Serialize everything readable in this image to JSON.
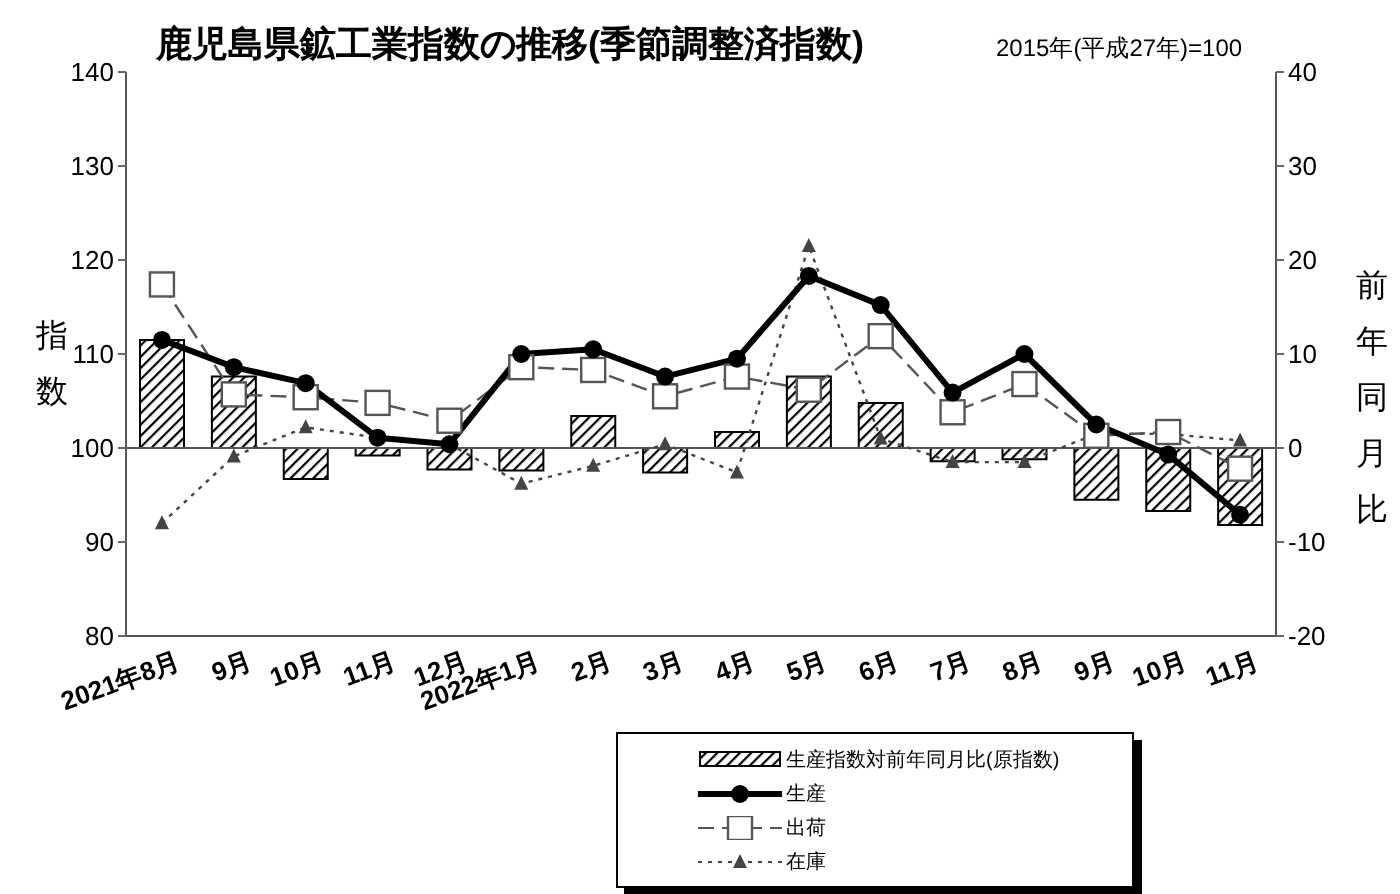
{
  "chart_data": {
    "type": "line",
    "title": "鹿児島県鉱工業指数の推移(季節調整済指数)",
    "subtitle": "2015年(平成27年)=100",
    "ylabel": "指数",
    "y2label": "前年同月比",
    "categories": [
      "2021年8月",
      "9月",
      "10月",
      "11月",
      "12月",
      "2022年1月",
      "2月",
      "3月",
      "4月",
      "5月",
      "6月",
      "7月",
      "8月",
      "9月",
      "10月",
      "11月"
    ],
    "ylim": [
      80,
      140
    ],
    "yticks": [
      80,
      90,
      100,
      110,
      120,
      130,
      140
    ],
    "y2lim": [
      -20,
      40
    ],
    "y2ticks": [
      -20,
      -10,
      0,
      10,
      20,
      30,
      40
    ],
    "legend": "bottom",
    "ref_lines": [
      {
        "axis": "y2",
        "value": 0,
        "color": "#555555"
      }
    ],
    "series": [
      {
        "name": "生産指数対前年同月比(原指数)",
        "type": "bar",
        "axis": "y2",
        "color": "#000000",
        "values": [
          11.5,
          7.6,
          -3.3,
          -0.8,
          -2.3,
          -2.4,
          3.4,
          -2.6,
          1.7,
          7.6,
          4.8,
          -1.4,
          -1.2,
          -5.5,
          -6.7,
          -8.2
        ]
      },
      {
        "name": "生産",
        "color": "#000000",
        "marker": "circle",
        "line_style": "solid",
        "values": [
          111.5,
          108.6,
          106.9,
          101.1,
          100.4,
          110.0,
          110.5,
          107.6,
          109.5,
          118.3,
          115.2,
          105.9,
          110.0,
          102.5,
          99.3,
          92.9
        ]
      },
      {
        "name": "出荷",
        "color": "#555555",
        "marker": "square",
        "line_style": "dashed",
        "values": [
          117.4,
          105.7,
          105.4,
          104.8,
          102.9,
          108.6,
          108.3,
          105.5,
          107.6,
          106.2,
          111.9,
          103.8,
          106.8,
          101.3,
          101.7,
          97.8
        ]
      },
      {
        "name": "在庫",
        "color": "#444444",
        "marker": "triangle",
        "line_style": "dotted",
        "values": [
          92.0,
          99.1,
          102.2,
          101.1,
          100.4,
          96.2,
          98.1,
          100.4,
          97.4,
          121.5,
          101.0,
          98.5,
          98.5,
          101.5,
          101.5,
          100.8
        ]
      }
    ]
  }
}
